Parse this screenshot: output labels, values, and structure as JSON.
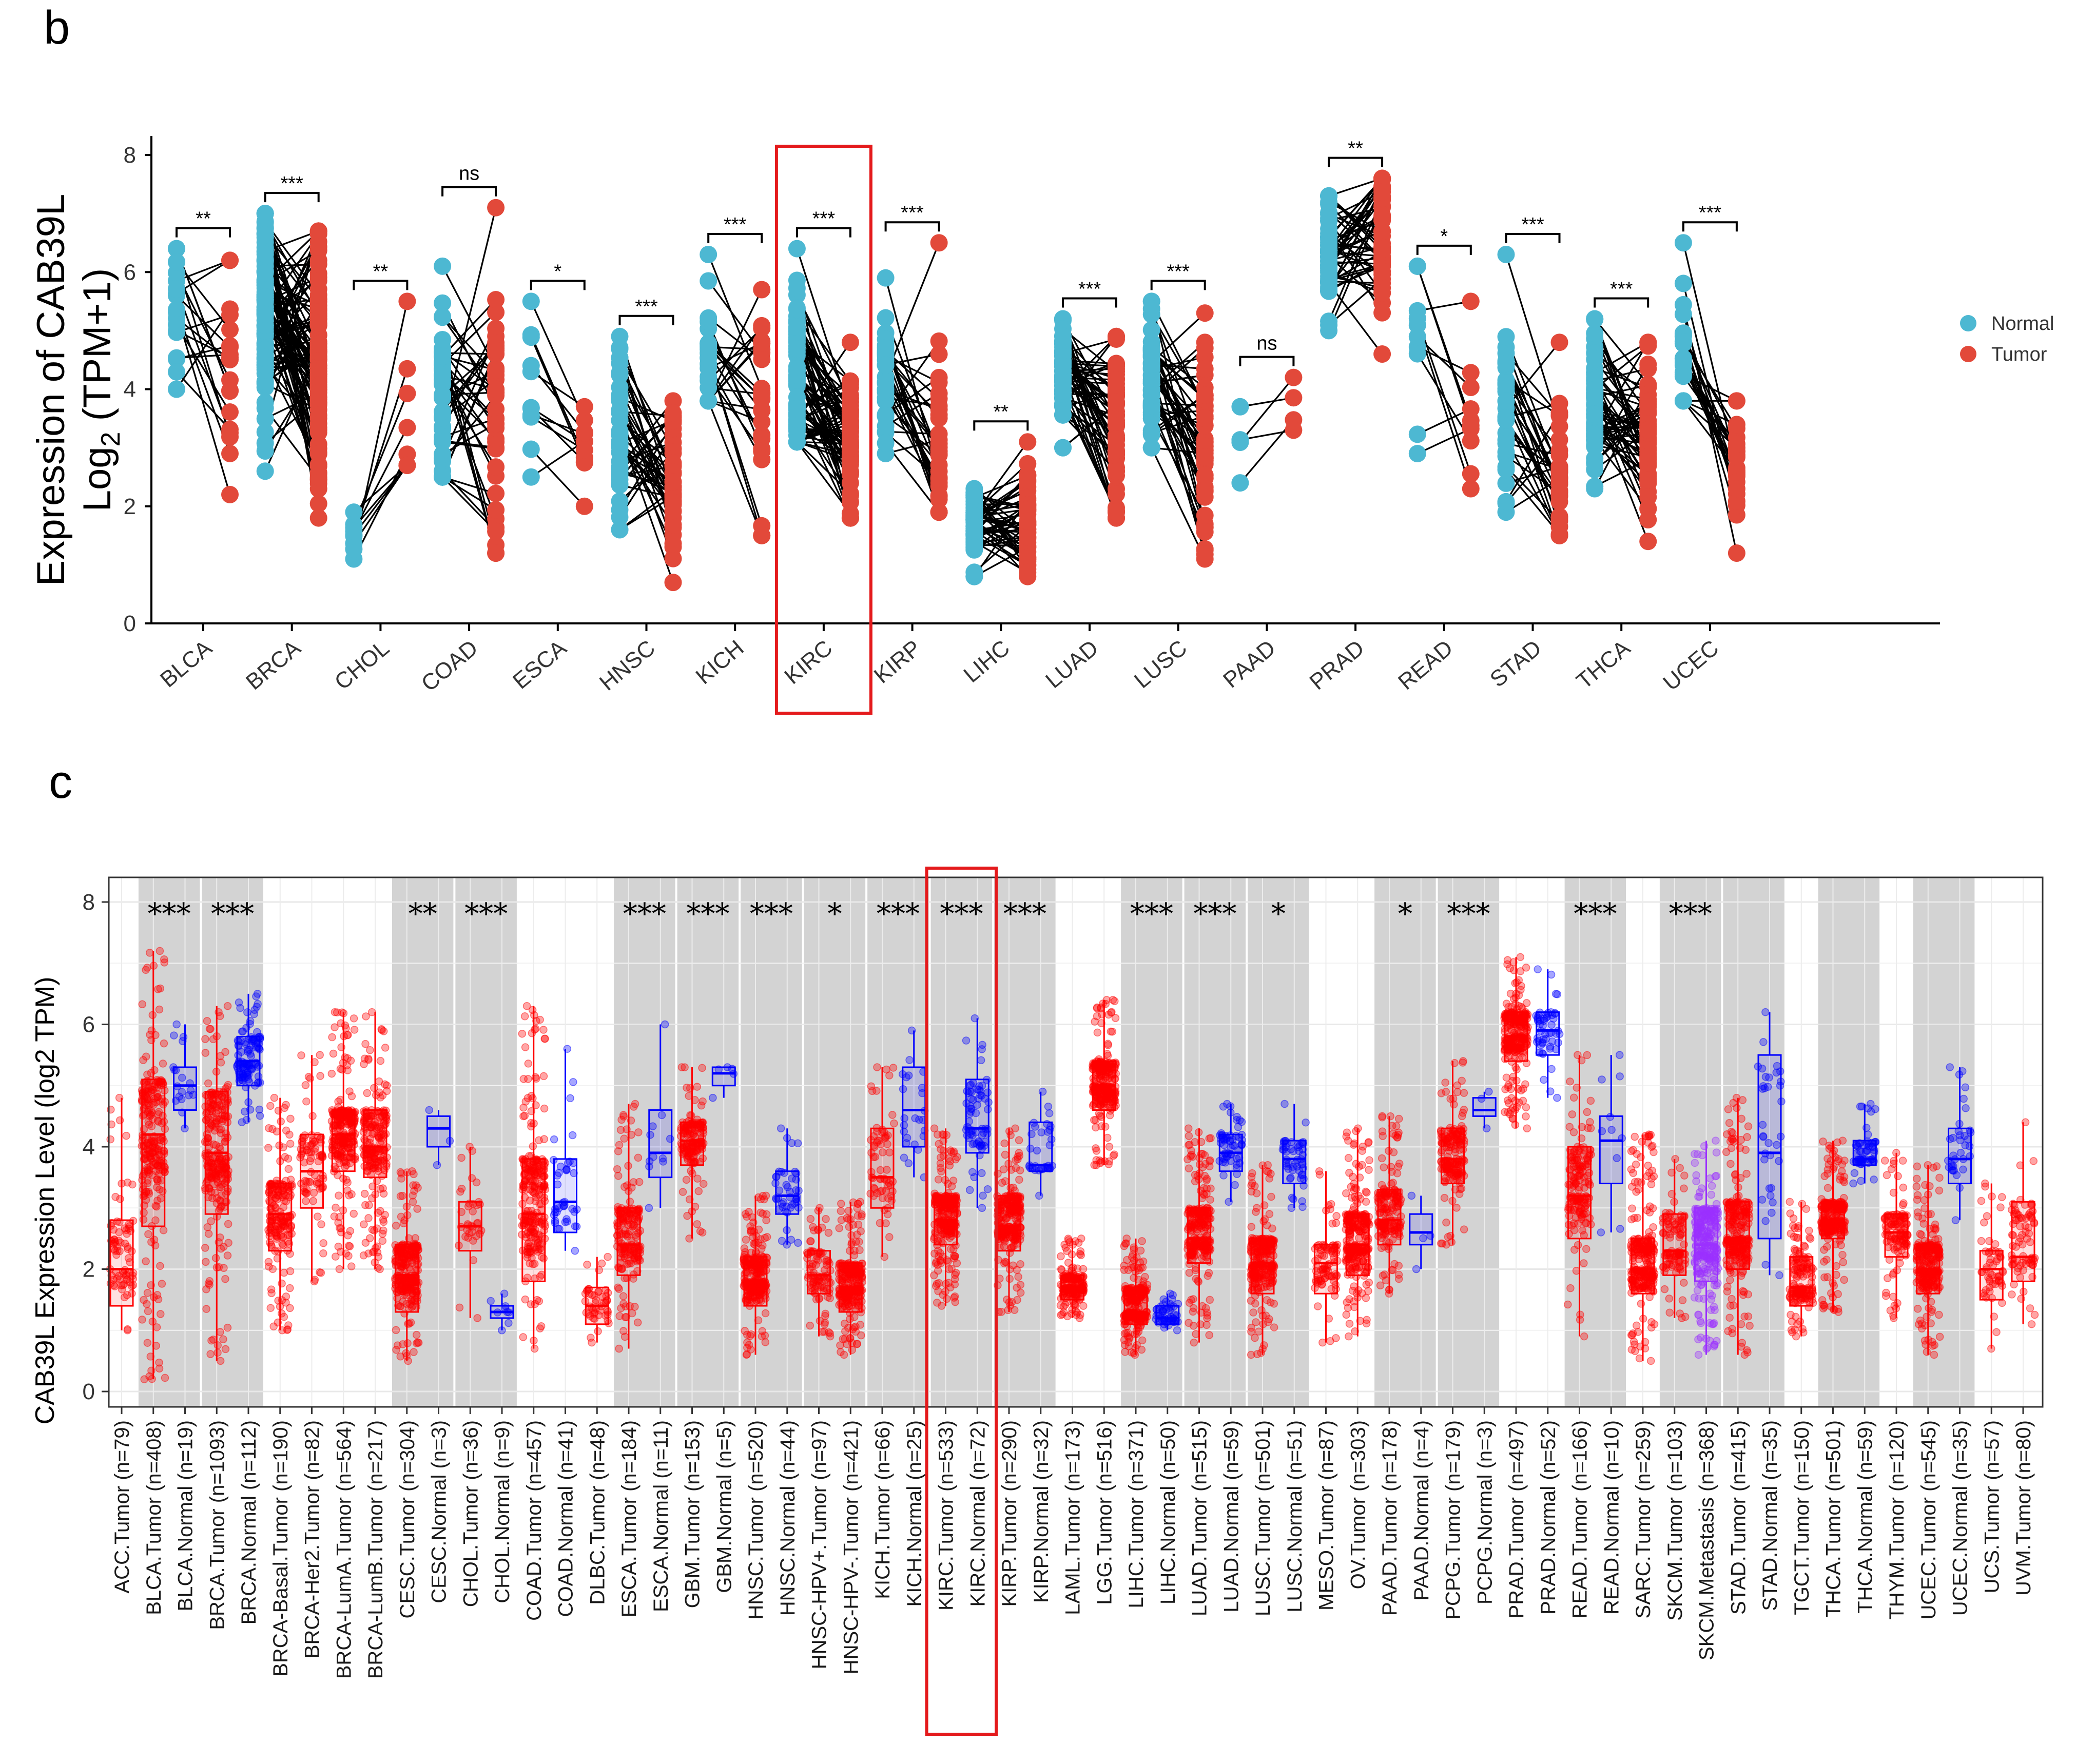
{
  "panel_b": {
    "letter": "b",
    "ylabel_line1": "Expression of CAB39L",
    "ylabel_line2_prefix": "Log",
    "ylabel_line2_sub": "2",
    "ylabel_line2_suffix": " (TPM+1)",
    "legend": [
      {
        "label": "Normal",
        "color": "#4db8d2"
      },
      {
        "label": "Tumor",
        "color": "#e2493a"
      }
    ],
    "highlight": "KIRC"
  },
  "panel_c": {
    "letter": "c",
    "ylabel": "CAB39L Expression Level (log2 TPM)",
    "colors": {
      "tumor": "#ff0000",
      "normal": "#0000ff",
      "metastasis": "#9b30ff",
      "shade": "#d3d3d3"
    },
    "highlight": [
      "KIRC.Tumor (n=533)",
      "KIRC.Normal (n=72)"
    ]
  },
  "chart_data": [
    {
      "type": "scatter",
      "subtype": "paired-dot",
      "ylabel": "Expression of CAB39L Log2 (TPM+1)",
      "ylim": [
        0,
        8
      ],
      "yticks": [
        0,
        2,
        4,
        6,
        8
      ],
      "categories": [
        "BLCA",
        "BRCA",
        "CHOL",
        "COAD",
        "ESCA",
        "HNSC",
        "KICH",
        "KIRC",
        "KIRP",
        "LIHC",
        "LUAD",
        "LUSC",
        "PAAD",
        "PRAD",
        "READ",
        "STAD",
        "THCA",
        "UCEC"
      ],
      "significance": [
        "**",
        "***",
        "**",
        "ns",
        "*",
        "***",
        "***",
        "***",
        "***",
        "**",
        "***",
        "***",
        "ns",
        "**",
        "*",
        "***",
        "***",
        "***"
      ],
      "series": [
        {
          "name": "Normal",
          "ranges": [
            [
              4.0,
              6.4
            ],
            [
              2.6,
              7.0
            ],
            [
              1.1,
              1.9
            ],
            [
              2.5,
              6.1
            ],
            [
              2.5,
              5.5
            ],
            [
              1.6,
              4.9
            ],
            [
              3.8,
              6.3
            ],
            [
              3.1,
              6.4
            ],
            [
              2.9,
              5.9
            ],
            [
              0.8,
              2.3
            ],
            [
              3.0,
              5.2
            ],
            [
              3.0,
              5.5
            ],
            [
              2.4,
              3.7
            ],
            [
              5.0,
              7.3
            ],
            [
              2.9,
              6.1
            ],
            [
              1.9,
              6.3
            ],
            [
              2.3,
              5.2
            ],
            [
              3.8,
              6.5
            ]
          ],
          "medians": [
            5.3,
            5.4,
            1.5,
            3.7,
            4.0,
            3.2,
            4.6,
            4.2,
            4.3,
            1.6,
            4.2,
            4.2,
            3.3,
            6.3,
            4.6,
            3.8,
            3.8,
            4.5
          ]
        },
        {
          "name": "Tumor",
          "ranges": [
            [
              2.2,
              6.2
            ],
            [
              1.8,
              6.7
            ],
            [
              2.7,
              5.5
            ],
            [
              1.2,
              7.1
            ],
            [
              2.0,
              3.7
            ],
            [
              0.7,
              3.8
            ],
            [
              1.5,
              5.7
            ],
            [
              1.8,
              4.8
            ],
            [
              1.9,
              6.5
            ],
            [
              0.8,
              3.1
            ],
            [
              1.8,
              4.9
            ],
            [
              1.1,
              5.3
            ],
            [
              3.3,
              4.2
            ],
            [
              4.6,
              7.6
            ],
            [
              2.3,
              5.5
            ],
            [
              1.5,
              4.8
            ],
            [
              1.4,
              4.8
            ],
            [
              1.2,
              3.8
            ]
          ],
          "medians": [
            4.7,
            4.5,
            3.2,
            3.4,
            3.0,
            2.4,
            3.8,
            3.1,
            3.3,
            1.7,
            3.3,
            2.9,
            3.6,
            6.6,
            3.2,
            2.8,
            3.3,
            2.8
          ]
        }
      ]
    },
    {
      "type": "box",
      "ylabel": "CAB39L Expression Level (log2 TPM)",
      "ylim": [
        0,
        8
      ],
      "yticks": [
        0,
        2,
        4,
        6,
        8
      ],
      "significance_labels": [
        "***",
        "***",
        "**",
        "***",
        "***",
        "***",
        "***",
        "*",
        "***",
        "***",
        "***",
        "***",
        "***",
        "*",
        "*",
        "***",
        "***",
        "***"
      ],
      "groups": [
        {
          "label": "ACC.Tumor (n=79)",
          "kind": "tumor",
          "stats": [
            1.0,
            1.4,
            2.0,
            2.8,
            4.8
          ]
        },
        {
          "label": "BLCA.Tumor (n=408)",
          "kind": "tumor",
          "stats": [
            0.2,
            2.7,
            4.2,
            5.1,
            7.2
          ]
        },
        {
          "label": "BLCA.Normal (n=19)",
          "kind": "normal",
          "stats": [
            4.3,
            4.6,
            5.0,
            5.3,
            6.0
          ]
        },
        {
          "label": "BRCA.Tumor (n=1093)",
          "kind": "tumor",
          "stats": [
            0.5,
            2.9,
            3.9,
            4.9,
            6.3
          ]
        },
        {
          "label": "BRCA.Normal (n=112)",
          "kind": "normal",
          "stats": [
            4.4,
            5.0,
            5.4,
            5.8,
            6.5
          ]
        },
        {
          "label": "BRCA-Basal.Tumor (n=190)",
          "kind": "tumor",
          "stats": [
            1.0,
            2.3,
            2.9,
            3.4,
            4.8
          ]
        },
        {
          "label": "BRCA-Her2.Tumor (n=82)",
          "kind": "tumor",
          "stats": [
            1.8,
            3.0,
            3.6,
            4.2,
            5.5
          ]
        },
        {
          "label": "BRCA-LumA.Tumor (n=564)",
          "kind": "tumor",
          "stats": [
            2.0,
            3.6,
            4.2,
            4.6,
            6.2
          ]
        },
        {
          "label": "BRCA-LumB.Tumor (n=217)",
          "kind": "tumor",
          "stats": [
            2.0,
            3.5,
            4.0,
            4.6,
            6.2
          ]
        },
        {
          "label": "CESC.Tumor (n=304)",
          "kind": "tumor",
          "stats": [
            0.5,
            1.3,
            1.9,
            2.4,
            3.6
          ]
        },
        {
          "label": "CESC.Normal (n=3)",
          "kind": "normal",
          "stats": [
            3.7,
            4.0,
            4.3,
            4.5,
            4.6
          ]
        },
        {
          "label": "CHOL.Tumor (n=36)",
          "kind": "tumor",
          "stats": [
            1.2,
            2.3,
            2.7,
            3.1,
            4.0
          ]
        },
        {
          "label": "CHOL.Normal (n=9)",
          "kind": "normal",
          "stats": [
            1.0,
            1.2,
            1.3,
            1.4,
            1.6
          ]
        },
        {
          "label": "COAD.Tumor (n=457)",
          "kind": "tumor",
          "stats": [
            0.7,
            1.8,
            2.9,
            3.8,
            6.3
          ]
        },
        {
          "label": "COAD.Normal (n=41)",
          "kind": "normal",
          "stats": [
            2.3,
            2.6,
            3.1,
            3.8,
            5.6
          ]
        },
        {
          "label": "DLBC.Tumor (n=48)",
          "kind": "tumor",
          "stats": [
            0.8,
            1.1,
            1.4,
            1.7,
            2.2
          ]
        },
        {
          "label": "ESCA.Tumor (n=184)",
          "kind": "tumor",
          "stats": [
            0.7,
            1.9,
            2.4,
            3.0,
            4.7
          ]
        },
        {
          "label": "ESCA.Normal (n=11)",
          "kind": "normal",
          "stats": [
            3.0,
            3.5,
            3.9,
            4.6,
            6.0
          ]
        },
        {
          "label": "GBM.Tumor (n=153)",
          "kind": "tumor",
          "stats": [
            2.5,
            3.7,
            4.1,
            4.4,
            5.3
          ]
        },
        {
          "label": "GBM.Normal (n=5)",
          "kind": "normal",
          "stats": [
            4.8,
            5.0,
            5.2,
            5.3,
            5.3
          ]
        },
        {
          "label": "HNSC.Tumor (n=520)",
          "kind": "tumor",
          "stats": [
            0.6,
            1.4,
            1.8,
            2.2,
            3.2
          ]
        },
        {
          "label": "HNSC.Normal (n=44)",
          "kind": "normal",
          "stats": [
            2.4,
            2.9,
            3.2,
            3.6,
            4.3
          ]
        },
        {
          "label": "HNSC-HPV+.Tumor (n=97)",
          "kind": "tumor",
          "stats": [
            0.9,
            1.6,
            1.9,
            2.3,
            3.0
          ]
        },
        {
          "label": "HNSC-HPV-.Tumor (n=421)",
          "kind": "tumor",
          "stats": [
            0.6,
            1.3,
            1.7,
            2.1,
            3.1
          ]
        },
        {
          "label": "KICH.Tumor (n=66)",
          "kind": "tumor",
          "stats": [
            2.2,
            3.0,
            3.5,
            4.3,
            5.3
          ]
        },
        {
          "label": "KICH.Normal (n=25)",
          "kind": "normal",
          "stats": [
            3.5,
            4.0,
            4.6,
            5.3,
            5.9
          ]
        },
        {
          "label": "KIRC.Tumor (n=533)",
          "kind": "tumor",
          "stats": [
            1.4,
            2.4,
            2.8,
            3.2,
            4.3
          ]
        },
        {
          "label": "KIRC.Normal (n=72)",
          "kind": "normal",
          "stats": [
            3.0,
            3.9,
            4.3,
            5.1,
            6.1
          ]
        },
        {
          "label": "KIRP.Tumor (n=290)",
          "kind": "tumor",
          "stats": [
            1.3,
            2.3,
            2.7,
            3.2,
            4.3
          ]
        },
        {
          "label": "KIRP.Normal (n=32)",
          "kind": "normal",
          "stats": [
            3.2,
            3.6,
            3.7,
            4.4,
            4.9
          ]
        },
        {
          "label": "LAML.Tumor (n=173)",
          "kind": "tumor",
          "stats": [
            1.2,
            1.5,
            1.7,
            1.9,
            2.5
          ]
        },
        {
          "label": "LGG.Tumor (n=516)",
          "kind": "tumor",
          "stats": [
            3.7,
            4.6,
            5.0,
            5.4,
            6.4
          ]
        },
        {
          "label": "LIHC.Tumor (n=371)",
          "kind": "tumor",
          "stats": [
            0.6,
            1.1,
            1.3,
            1.7,
            2.5
          ]
        },
        {
          "label": "LIHC.Normal (n=50)",
          "kind": "normal",
          "stats": [
            1.0,
            1.1,
            1.2,
            1.4,
            1.6
          ]
        },
        {
          "label": "LUAD.Tumor (n=515)",
          "kind": "tumor",
          "stats": [
            0.8,
            2.1,
            2.5,
            3.0,
            4.3
          ]
        },
        {
          "label": "LUAD.Normal (n=59)",
          "kind": "normal",
          "stats": [
            3.1,
            3.6,
            3.9,
            4.2,
            4.7
          ]
        },
        {
          "label": "LUSC.Tumor (n=501)",
          "kind": "tumor",
          "stats": [
            0.6,
            1.6,
            2.1,
            2.5,
            3.7
          ]
        },
        {
          "label": "LUSC.Normal (n=51)",
          "kind": "normal",
          "stats": [
            3.0,
            3.4,
            3.8,
            4.1,
            4.7
          ]
        },
        {
          "label": "MESO.Tumor (n=87)",
          "kind": "tumor",
          "stats": [
            0.8,
            1.6,
            2.1,
            2.4,
            3.6
          ]
        },
        {
          "label": "OV.Tumor (n=303)",
          "kind": "tumor",
          "stats": [
            0.9,
            1.9,
            2.4,
            2.9,
            4.3
          ]
        },
        {
          "label": "PAAD.Tumor (n=178)",
          "kind": "tumor",
          "stats": [
            1.6,
            2.4,
            2.8,
            3.3,
            4.5
          ]
        },
        {
          "label": "PAAD.Normal (n=4)",
          "kind": "normal",
          "stats": [
            2.0,
            2.4,
            2.6,
            2.9,
            3.2
          ]
        },
        {
          "label": "PCPG.Tumor (n=179)",
          "kind": "tumor",
          "stats": [
            2.4,
            3.4,
            3.8,
            4.3,
            5.4
          ]
        },
        {
          "label": "PCPG.Normal (n=3)",
          "kind": "normal",
          "stats": [
            4.3,
            4.5,
            4.6,
            4.8,
            4.9
          ]
        },
        {
          "label": "PRAD.Tumor (n=497)",
          "kind": "tumor",
          "stats": [
            4.3,
            5.4,
            5.8,
            6.2,
            7.1
          ]
        },
        {
          "label": "PRAD.Normal (n=52)",
          "kind": "normal",
          "stats": [
            4.8,
            5.5,
            5.9,
            6.2,
            6.9
          ]
        },
        {
          "label": "READ.Tumor (n=166)",
          "kind": "tumor",
          "stats": [
            0.9,
            2.5,
            3.2,
            4.0,
            5.5
          ]
        },
        {
          "label": "READ.Normal (n=10)",
          "kind": "normal",
          "stats": [
            2.6,
            3.4,
            4.1,
            4.5,
            5.5
          ]
        },
        {
          "label": "SARC.Tumor (n=259)",
          "kind": "tumor",
          "stats": [
            0.5,
            1.6,
            2.0,
            2.5,
            4.2
          ]
        },
        {
          "label": "SKCM.Tumor (n=103)",
          "kind": "tumor",
          "stats": [
            1.2,
            1.9,
            2.3,
            2.9,
            3.8
          ]
        },
        {
          "label": "SKCM.Metastasis (n=368)",
          "kind": "metastasis",
          "stats": [
            0.6,
            1.8,
            2.4,
            3.0,
            4.1
          ]
        },
        {
          "label": "STAD.Tumor (n=415)",
          "kind": "tumor",
          "stats": [
            0.6,
            2.0,
            2.5,
            3.1,
            4.8
          ]
        },
        {
          "label": "STAD.Normal (n=35)",
          "kind": "normal",
          "stats": [
            1.9,
            2.5,
            3.9,
            5.5,
            6.2
          ]
        },
        {
          "label": "TGCT.Tumor (n=150)",
          "kind": "tumor",
          "stats": [
            0.9,
            1.4,
            1.7,
            2.2,
            3.1
          ]
        },
        {
          "label": "THCA.Tumor (n=501)",
          "kind": "tumor",
          "stats": [
            1.3,
            2.5,
            2.8,
            3.1,
            4.1
          ]
        },
        {
          "label": "THCA.Normal (n=59)",
          "kind": "normal",
          "stats": [
            3.4,
            3.7,
            3.8,
            4.1,
            4.7
          ]
        },
        {
          "label": "THYM.Tumor (n=120)",
          "kind": "tumor",
          "stats": [
            1.2,
            2.2,
            2.6,
            2.9,
            3.9
          ]
        },
        {
          "label": "UCEC.Tumor (n=545)",
          "kind": "tumor",
          "stats": [
            0.6,
            1.6,
            2.0,
            2.4,
            3.7
          ]
        },
        {
          "label": "UCEC.Normal (n=35)",
          "kind": "normal",
          "stats": [
            2.8,
            3.4,
            3.8,
            4.3,
            5.3
          ]
        },
        {
          "label": "UCS.Tumor (n=57)",
          "kind": "tumor",
          "stats": [
            0.7,
            1.5,
            2.0,
            2.3,
            3.4
          ]
        },
        {
          "label": "UVM.Tumor (n=80)",
          "kind": "tumor",
          "stats": [
            1.1,
            1.8,
            2.2,
            3.1,
            4.4
          ]
        }
      ]
    }
  ]
}
